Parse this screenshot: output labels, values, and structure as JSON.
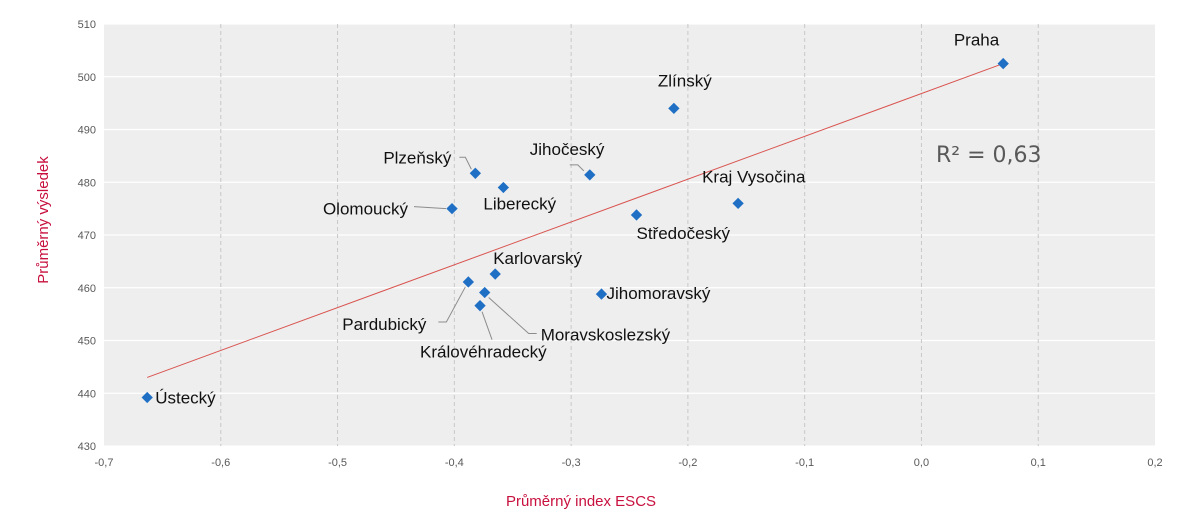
{
  "chart_data": {
    "type": "scatter",
    "title": "",
    "xlabel": "Průměrný index ESCS",
    "ylabel": "Průměrný výsledek",
    "xlim": [
      -0.7,
      0.2
    ],
    "ylim": [
      430,
      510
    ],
    "xticks": [
      "-0,7",
      "-0,6",
      "-0,5",
      "-0,4",
      "-0,3",
      "-0,2",
      "-0,1",
      "0,0",
      "0,1",
      "0,2"
    ],
    "yticks": [
      "430",
      "440",
      "450",
      "460",
      "470",
      "480",
      "490",
      "500",
      "510"
    ],
    "grid": {
      "horizontal": "solid",
      "vertical": "dashed"
    },
    "marker_color": "#1f6fc5",
    "trendline_color": "#d9534f",
    "points": [
      {
        "name": "Praha",
        "x": 0.07,
        "y": 502.5
      },
      {
        "name": "Zlínský",
        "x": -0.212,
        "y": 494.0
      },
      {
        "name": "Plzeňský",
        "x": -0.382,
        "y": 481.7
      },
      {
        "name": "Jihočeský",
        "x": -0.284,
        "y": 481.4
      },
      {
        "name": "Liberecký",
        "x": -0.358,
        "y": 479.0
      },
      {
        "name": "Olomoucký",
        "x": -0.402,
        "y": 475.0
      },
      {
        "name": "Kraj Vysočina",
        "x": -0.157,
        "y": 476.0
      },
      {
        "name": "Středočeský",
        "x": -0.244,
        "y": 473.8
      },
      {
        "name": "Karlovarský",
        "x": -0.365,
        "y": 462.6
      },
      {
        "name": "Pardubický",
        "x": -0.388,
        "y": 461.1
      },
      {
        "name": "Moravskoslezský",
        "x": -0.374,
        "y": 459.1
      },
      {
        "name": "Jihomoravský",
        "x": -0.274,
        "y": 458.8
      },
      {
        "name": "Královéhradecký",
        "x": -0.378,
        "y": 456.6
      },
      {
        "name": "Ústecký",
        "x": -0.663,
        "y": 439.2
      }
    ],
    "trendline": {
      "x": [
        -0.663,
        0.07
      ],
      "y": [
        443.0,
        502.5
      ]
    },
    "annotation": {
      "text": "R² = 0,63"
    }
  }
}
